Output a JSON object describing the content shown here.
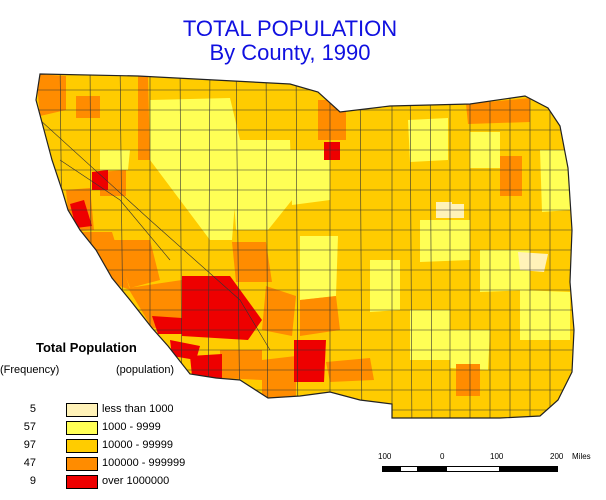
{
  "title": {
    "line1": "TOTAL POPULATION",
    "line2": "By County, 1990"
  },
  "legend": {
    "title": "Total Population",
    "frequency_header": "(Frequency)",
    "population_header": "(population)",
    "classes": [
      {
        "count": "5",
        "label": "less than 1000",
        "color": "#fff2b8"
      },
      {
        "count": "57",
        "label": "1000 - 9999",
        "color": "#ffff55"
      },
      {
        "count": "97",
        "label": "10000 - 99999",
        "color": "#ffcc00"
      },
      {
        "count": "47",
        "label": "100000 - 999999",
        "color": "#ff8c00"
      },
      {
        "count": "9",
        "label": "over 1000000",
        "color": "#ee0000"
      }
    ]
  },
  "scale_bar": {
    "labels": [
      "100",
      "0",
      "100",
      "200"
    ],
    "unit": "Miles"
  },
  "colors": {
    "title": "#1010e0",
    "border": "#333333"
  }
}
